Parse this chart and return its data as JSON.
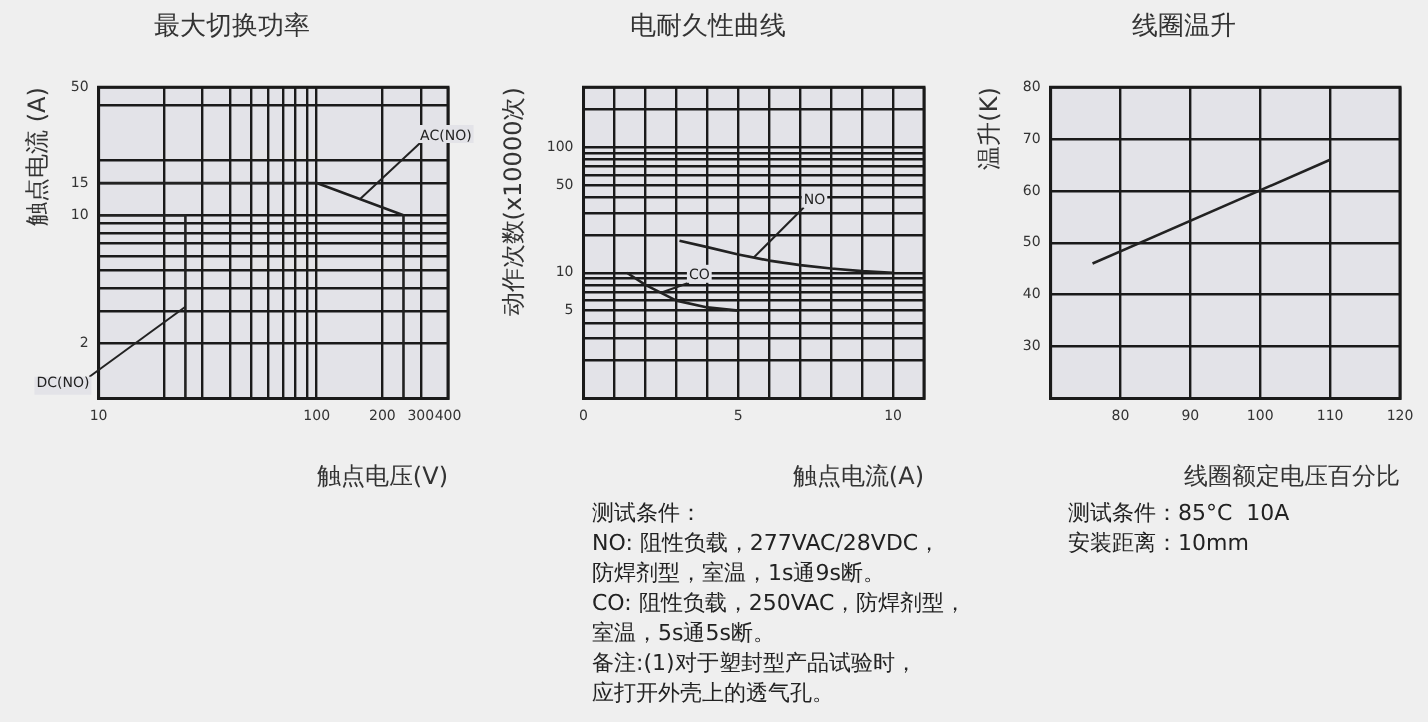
{
  "chart_data": [
    {
      "type": "line",
      "title": "最大切换功率",
      "xlabel": "触点电压(V)",
      "ylabel": "触点电流 (A)",
      "log": "xy",
      "marker": "none",
      "grid": true,
      "xlim": [
        10,
        400
      ],
      "xticks": [
        10,
        {
          "value": 20,
          "label": null
        },
        {
          "value": 30,
          "label": null
        },
        {
          "value": 40,
          "label": null
        },
        {
          "value": 50,
          "label": null
        },
        {
          "value": 60,
          "label": null
        },
        {
          "value": 70,
          "label": null
        },
        {
          "value": 80,
          "label": null
        },
        {
          "value": 90,
          "label": null
        },
        100,
        200,
        300,
        400
      ],
      "ylim": [
        1,
        50
      ],
      "yticks": [
        2,
        {
          "value": 3,
          "label": null
        },
        {
          "value": 4,
          "label": null
        },
        {
          "value": 5,
          "label": null
        },
        {
          "value": 6,
          "label": null
        },
        {
          "value": 7,
          "label": null
        },
        {
          "value": 8,
          "label": null
        },
        {
          "value": 9,
          "label": null
        },
        10,
        15,
        {
          "value": 20,
          "label": null
        },
        {
          "value": 40,
          "label": null
        },
        50
      ],
      "series": [
        {
          "name": "AC(NO)",
          "color": "#222222",
          "x": [
            10,
            100,
            250,
            250
          ],
          "values": [
            15,
            15,
            10,
            1
          ]
        },
        {
          "name": "DC(NO)",
          "color": "#222222",
          "x": [
            10,
            25,
            25
          ],
          "values": [
            10,
            10,
            1
          ]
        }
      ]
    },
    {
      "type": "line",
      "title": "电耐久性曲线",
      "xlabel": "触点电流(A)",
      "ylabel": "动作次数(x10000次)",
      "log": "y",
      "marker": "none",
      "grid": true,
      "xlim": [
        0,
        11
      ],
      "xticks": [
        0,
        {
          "value": 1,
          "label": null
        },
        {
          "value": 2,
          "label": null
        },
        {
          "value": 3,
          "label": null
        },
        {
          "value": 4,
          "label": null
        },
        5,
        {
          "value": 6,
          "label": null
        },
        {
          "value": 7,
          "label": null
        },
        {
          "value": 8,
          "label": null
        },
        {
          "value": 9,
          "label": null
        },
        10,
        {
          "value": 11,
          "label": null
        }
      ],
      "ylim": [
        1,
        300
      ],
      "yticks": [
        {
          "value": 2,
          "label": null
        },
        {
          "value": 3,
          "label": null
        },
        {
          "value": 4,
          "label": null
        },
        5,
        {
          "value": 6,
          "label": null
        },
        {
          "value": 7,
          "label": null
        },
        {
          "value": 8,
          "label": null
        },
        {
          "value": 9,
          "label": null
        },
        10,
        {
          "value": 20,
          "label": null
        },
        {
          "value": 30,
          "label": null
        },
        {
          "value": 40,
          "label": null
        },
        50,
        {
          "value": 60,
          "label": null
        },
        {
          "value": 70,
          "label": null
        },
        {
          "value": 80,
          "label": null
        },
        {
          "value": 90,
          "label": null
        },
        100,
        {
          "value": 200,
          "label": null
        },
        {
          "value": 300,
          "label": null
        }
      ],
      "series": [
        {
          "name": "NO",
          "color": "#222222",
          "x": [
            3.1,
            4,
            5,
            6,
            7,
            8,
            9,
            10
          ],
          "values": [
            18,
            16,
            14,
            12.5,
            11.5,
            10.8,
            10.3,
            10
          ]
        },
        {
          "name": "CO",
          "color": "#222222",
          "x": [
            1.4,
            2,
            3,
            4,
            5
          ],
          "values": [
            10,
            8,
            6,
            5.3,
            5
          ]
        }
      ],
      "annotations": [
        "测试条件：",
        "NO: 阻性负载，277VAC/28VDC，",
        "防焊剂型，室温，1s通9s断。",
        "CO: 阻性负载，250VAC，防焊剂型，",
        "室温，5s通5s断。",
        "备注:(1)对于塑封型产品试验时，",
        "应打开外壳上的透气孔。"
      ]
    },
    {
      "type": "line",
      "title": "线圈温升",
      "xlabel": "线圈额定电压百分比",
      "ylabel": "温升(K)",
      "marker": "none",
      "grid": true,
      "xlim": [
        70,
        120
      ],
      "xticks": [
        80,
        90,
        100,
        110,
        120
      ],
      "ylim": [
        20,
        80
      ],
      "yticks": [
        30,
        40,
        50,
        60,
        70,
        80
      ],
      "series": [
        {
          "color": "#222222",
          "x": [
            76,
            110
          ],
          "values": [
            46,
            66
          ]
        }
      ],
      "annotations": [
        "测试条件：85°C  10A",
        "安装距离：10mm"
      ]
    }
  ]
}
